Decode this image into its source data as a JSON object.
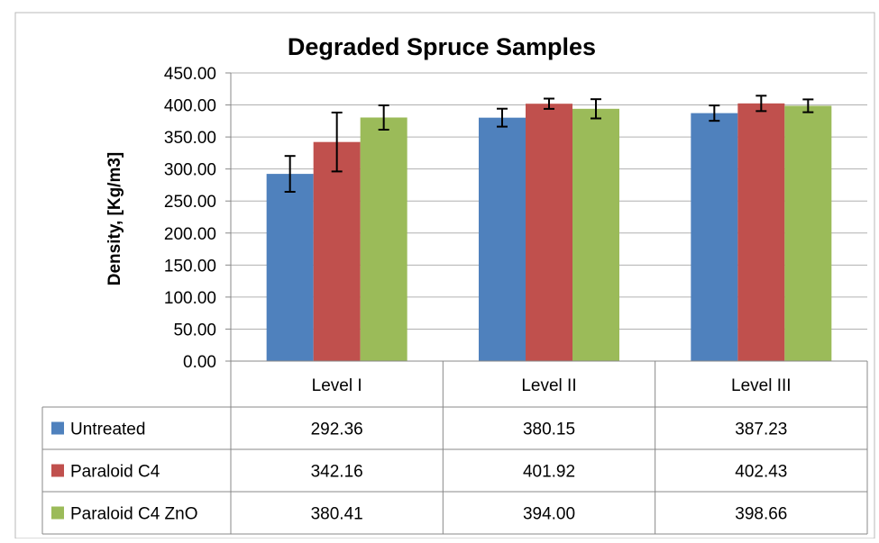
{
  "chart_data": {
    "type": "bar",
    "title": "Degraded Spruce Samples",
    "ylabel": "Density, [Kg/m3]",
    "xlabel": "",
    "ylim": [
      0,
      450
    ],
    "ytick_step": 50,
    "ytick_labels": [
      "0.00",
      "50.00",
      "100.00",
      "150.00",
      "200.00",
      "250.00",
      "300.00",
      "350.00",
      "400.00",
      "450.00"
    ],
    "grid": true,
    "legend_position": "data-table",
    "categories": [
      "Level I",
      "Level II",
      "Level III"
    ],
    "series": [
      {
        "name": "Untreated",
        "color": "#4F81BD",
        "values": [
          292.36,
          380.15,
          387.23
        ],
        "value_labels": [
          "292.36",
          "380.15",
          "387.23"
        ],
        "error": [
          28,
          14,
          12
        ]
      },
      {
        "name": "Paraloid C4",
        "color": "#C0504D",
        "values": [
          342.16,
          401.92,
          402.43
        ],
        "value_labels": [
          "342.16",
          "401.92",
          "402.43"
        ],
        "error": [
          46,
          8,
          12
        ]
      },
      {
        "name": "Paraloid C4 ZnO",
        "color": "#9BBB59",
        "values": [
          380.41,
          394.0,
          398.66
        ],
        "value_labels": [
          "380.41",
          "394.00",
          "398.66"
        ],
        "error": [
          19,
          15,
          10
        ]
      }
    ]
  }
}
